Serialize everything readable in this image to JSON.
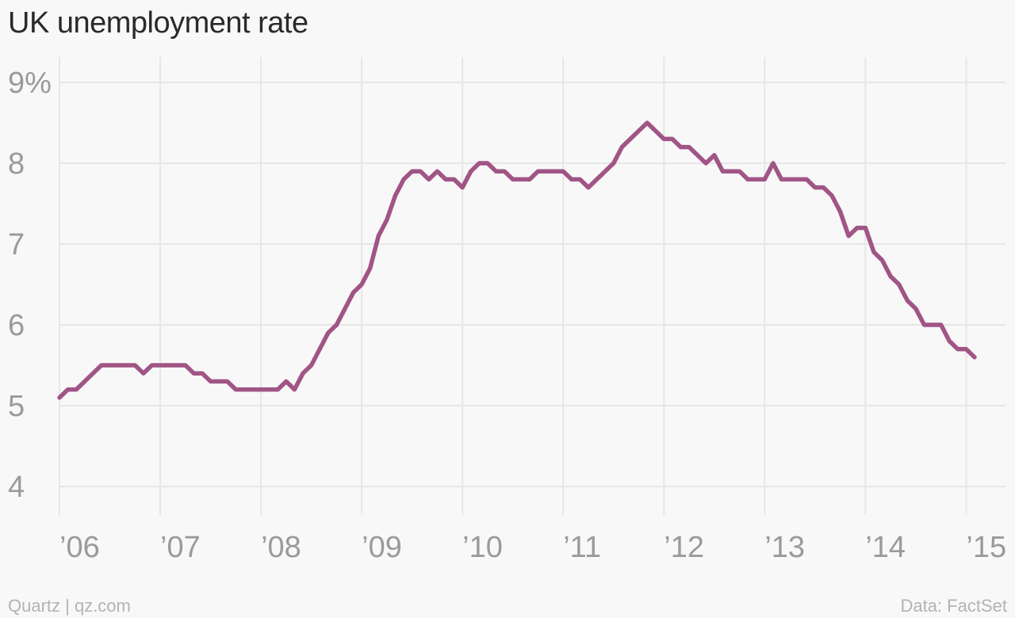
{
  "title": "UK unemployment rate",
  "footer": {
    "source_left": "Quartz | qz.com",
    "source_right": "Data: FactSet"
  },
  "colors": {
    "line": "#a05585",
    "grid": "#e6e6e6",
    "tick": "#9a9a9a",
    "background": "#f8f8f8"
  },
  "chart_data": {
    "type": "line",
    "title": "UK unemployment rate",
    "xlabel": "",
    "ylabel": "",
    "ylim": [
      4,
      9
    ],
    "y_ticks": [
      "4",
      "5",
      "6",
      "7",
      "8",
      "9%"
    ],
    "y_tick_values": [
      4,
      5,
      6,
      7,
      8,
      9
    ],
    "x_ticks": [
      "’06",
      "’07",
      "’08",
      "’09",
      "’10",
      "’11",
      "’12",
      "’13",
      "’14",
      "’15"
    ],
    "x_tick_values": [
      "2006-01",
      "2007-01",
      "2008-01",
      "2009-01",
      "2010-01",
      "2011-01",
      "2012-01",
      "2013-01",
      "2014-01",
      "2015-01"
    ],
    "x_range": [
      "2006-01",
      "2015-02"
    ],
    "grid": true,
    "legend": "none",
    "series": [
      {
        "x": [
          "2006-01",
          "2006-02",
          "2006-03",
          "2006-04",
          "2006-05",
          "2006-06",
          "2006-07",
          "2006-08",
          "2006-09",
          "2006-10",
          "2006-11",
          "2006-12",
          "2007-01",
          "2007-02",
          "2007-03",
          "2007-04",
          "2007-05",
          "2007-06",
          "2007-07",
          "2007-08",
          "2007-09",
          "2007-10",
          "2007-11",
          "2007-12",
          "2008-01",
          "2008-02",
          "2008-03",
          "2008-04",
          "2008-05",
          "2008-06",
          "2008-07",
          "2008-08",
          "2008-09",
          "2008-10",
          "2008-11",
          "2008-12",
          "2009-01",
          "2009-02",
          "2009-03",
          "2009-04",
          "2009-05",
          "2009-06",
          "2009-07",
          "2009-08",
          "2009-09",
          "2009-10",
          "2009-11",
          "2009-12",
          "2010-01",
          "2010-02",
          "2010-03",
          "2010-04",
          "2010-05",
          "2010-06",
          "2010-07",
          "2010-08",
          "2010-09",
          "2010-10",
          "2010-11",
          "2010-12",
          "2011-01",
          "2011-02",
          "2011-03",
          "2011-04",
          "2011-05",
          "2011-06",
          "2011-07",
          "2011-08",
          "2011-09",
          "2011-10",
          "2011-11",
          "2011-12",
          "2012-01",
          "2012-02",
          "2012-03",
          "2012-04",
          "2012-05",
          "2012-06",
          "2012-07",
          "2012-08",
          "2012-09",
          "2012-10",
          "2012-11",
          "2012-12",
          "2013-01",
          "2013-02",
          "2013-03",
          "2013-04",
          "2013-05",
          "2013-06",
          "2013-07",
          "2013-08",
          "2013-09",
          "2013-10",
          "2013-11",
          "2013-12",
          "2014-01",
          "2014-02",
          "2014-03",
          "2014-04",
          "2014-05",
          "2014-06",
          "2014-07",
          "2014-08",
          "2014-09",
          "2014-10",
          "2014-11",
          "2014-12",
          "2015-01",
          "2015-02"
        ],
        "values": [
          5.1,
          5.2,
          5.2,
          5.3,
          5.4,
          5.5,
          5.5,
          5.5,
          5.5,
          5.5,
          5.4,
          5.5,
          5.5,
          5.5,
          5.5,
          5.5,
          5.4,
          5.4,
          5.3,
          5.3,
          5.3,
          5.2,
          5.2,
          5.2,
          5.2,
          5.2,
          5.2,
          5.3,
          5.2,
          5.4,
          5.5,
          5.7,
          5.9,
          6.0,
          6.2,
          6.4,
          6.5,
          6.7,
          7.1,
          7.3,
          7.6,
          7.8,
          7.9,
          7.9,
          7.8,
          7.9,
          7.8,
          7.8,
          7.7,
          7.9,
          8.0,
          8.0,
          7.9,
          7.9,
          7.8,
          7.8,
          7.8,
          7.9,
          7.9,
          7.9,
          7.9,
          7.8,
          7.8,
          7.7,
          7.8,
          7.9,
          8.0,
          8.2,
          8.3,
          8.4,
          8.5,
          8.4,
          8.3,
          8.3,
          8.2,
          8.2,
          8.1,
          8.0,
          8.1,
          7.9,
          7.9,
          7.9,
          7.8,
          7.8,
          7.8,
          8.0,
          7.8,
          7.8,
          7.8,
          7.8,
          7.7,
          7.7,
          7.6,
          7.4,
          7.1,
          7.2,
          7.2,
          6.9,
          6.8,
          6.6,
          6.5,
          6.3,
          6.2,
          6.0,
          6.0,
          6.0,
          5.8,
          5.7,
          5.7,
          5.6
        ]
      }
    ]
  }
}
